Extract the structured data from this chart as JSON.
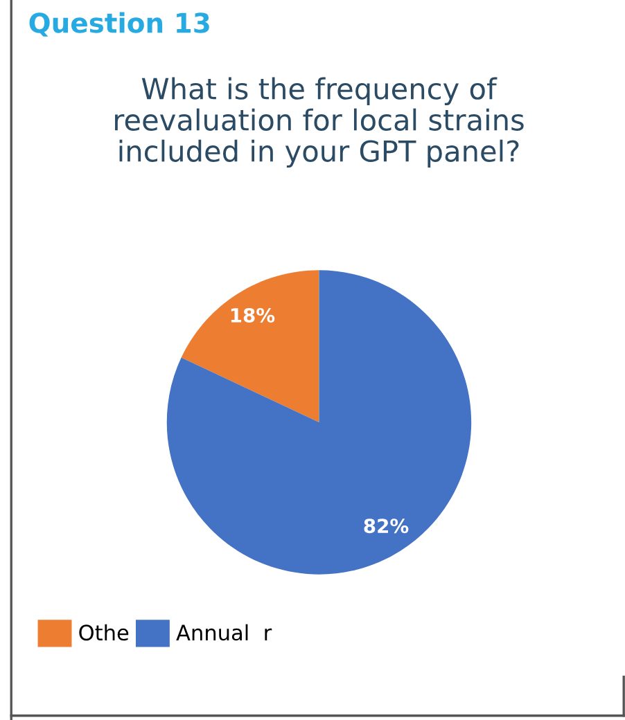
{
  "chart_data": {
    "type": "pie",
    "title": "Question 13",
    "subtitle": "What is the frequency of\nreevaluation for local strains\nincluded in your GPT panel?",
    "categories": [
      "Othe",
      "Annual  r"
    ],
    "values": [
      18,
      82
    ],
    "colors": [
      "#ed7d31",
      "#4472c4"
    ],
    "value_labels": [
      "18%",
      "82%"
    ],
    "legend": "bottom left"
  }
}
